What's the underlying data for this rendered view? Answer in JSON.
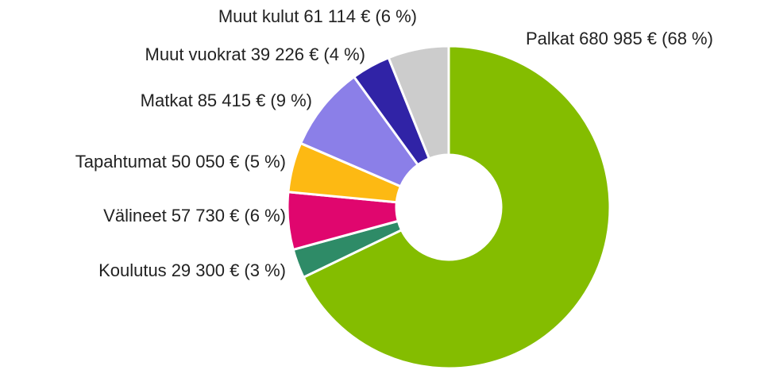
{
  "chart_data": {
    "type": "donut",
    "categories": [
      "Palkat",
      "Koulutus",
      "Välineet",
      "Tapahtumat",
      "Matkat",
      "Muut vuokrat",
      "Muut kulut"
    ],
    "values": [
      680985,
      29300,
      57730,
      50050,
      85415,
      39226,
      61114
    ],
    "value_labels": [
      "680 985 € (68 %)",
      "29 300 € (3 %)",
      "57 730 € (6 %)",
      "50 050 € (5 %)",
      "85 415 € (9 %)",
      "39 226 € (4 %)",
      "61 114 € (6 %)"
    ],
    "colors": [
      "#84bd00",
      "#2e8b67",
      "#e0066e",
      "#fdb913",
      "#8b7fe8",
      "#3023a6",
      "#cccccc"
    ]
  }
}
